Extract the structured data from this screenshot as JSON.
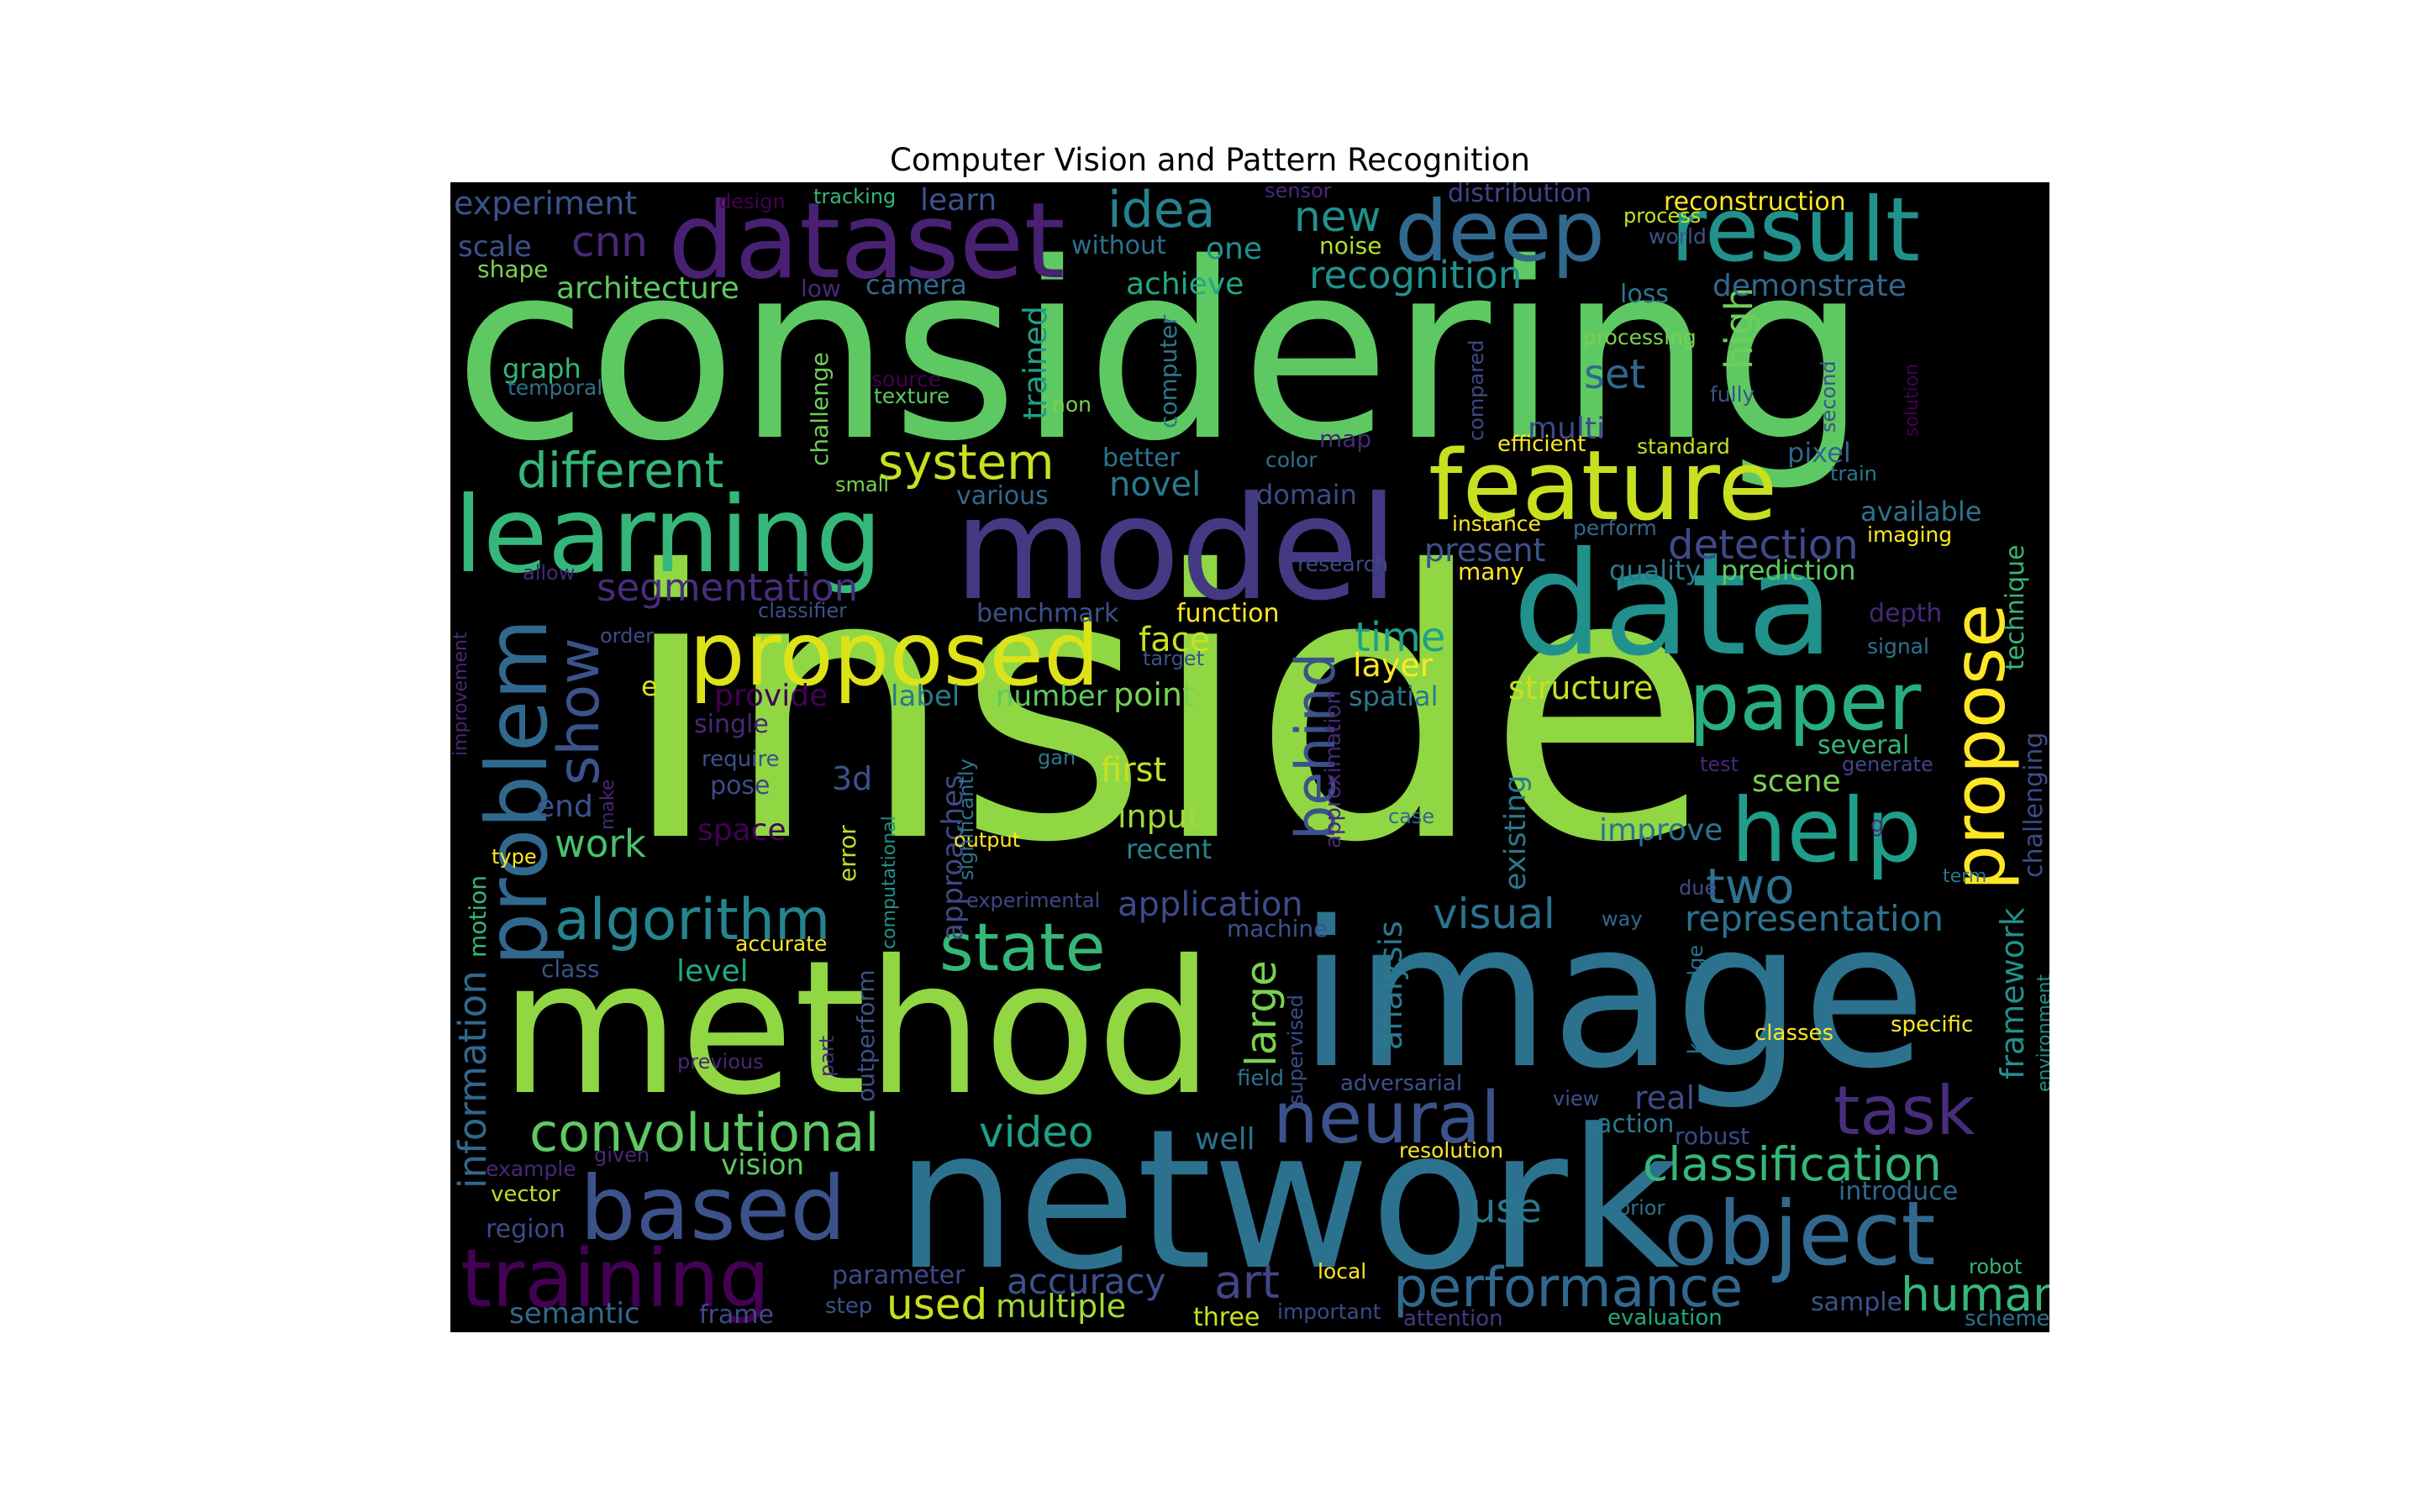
{
  "title": "Computer Vision and Pattern Recognition",
  "background": "#000000",
  "colormap": "viridis",
  "words": [
    {
      "text": "inside",
      "color": "#90d743"
    },
    {
      "text": "considering",
      "color": "#5ec962"
    },
    {
      "text": "network",
      "color": "#2c728e"
    },
    {
      "text": "image",
      "color": "#2c728e"
    },
    {
      "text": "method",
      "color": "#90d743"
    },
    {
      "text": "model",
      "color": "#443983"
    },
    {
      "text": "data",
      "color": "#21918c"
    },
    {
      "text": "dataset",
      "color": "#482173"
    },
    {
      "text": "deep",
      "color": "#31688e"
    },
    {
      "text": "result",
      "color": "#21918c"
    },
    {
      "text": "feature",
      "color": "#c8e020"
    },
    {
      "text": "learning",
      "color": "#35b779"
    },
    {
      "text": "proposed",
      "color": "#dde318"
    },
    {
      "text": "paper",
      "color": "#28ae80"
    },
    {
      "text": "help",
      "color": "#1f9e89"
    },
    {
      "text": "propose",
      "color": "#fde725"
    },
    {
      "text": "problem",
      "color": "#31688e"
    },
    {
      "text": "based",
      "color": "#3b528b"
    },
    {
      "text": "object",
      "color": "#31688e"
    },
    {
      "text": "training",
      "color": "#440154"
    },
    {
      "text": "neural",
      "color": "#3b528b"
    },
    {
      "text": "task",
      "color": "#472d7b"
    },
    {
      "text": "convolutional",
      "color": "#5ec962"
    },
    {
      "text": "state",
      "color": "#35b779"
    },
    {
      "text": "algorithm",
      "color": "#25848e"
    },
    {
      "text": "show",
      "color": "#3b528b"
    },
    {
      "text": "system",
      "color": "#c8e020"
    },
    {
      "text": "different",
      "color": "#35b779"
    },
    {
      "text": "behind",
      "color": "#3b528b"
    },
    {
      "text": "performance",
      "color": "#31688e"
    },
    {
      "text": "classification",
      "color": "#35b779"
    },
    {
      "text": "idea",
      "color": "#26828e"
    },
    {
      "text": "cnn",
      "color": "#482878"
    },
    {
      "text": "new",
      "color": "#21918c"
    },
    {
      "text": "two",
      "color": "#2c728e"
    },
    {
      "text": "video",
      "color": "#1fa188"
    },
    {
      "text": "art",
      "color": "#414487"
    },
    {
      "text": "human",
      "color": "#35b779"
    },
    {
      "text": "detection",
      "color": "#3e4a89"
    },
    {
      "text": "segmentation",
      "color": "#472d7b"
    },
    {
      "text": "representation",
      "color": "#2c728e"
    },
    {
      "text": "visual",
      "color": "#2c728e"
    },
    {
      "text": "recognition",
      "color": "#21918c"
    },
    {
      "text": "time",
      "color": "#1fa188"
    },
    {
      "text": "large",
      "color": "#7ad151"
    },
    {
      "text": "accuracy",
      "color": "#3b528b"
    },
    {
      "text": "application",
      "color": "#3e4a89"
    },
    {
      "text": "framework",
      "color": "#21918c"
    },
    {
      "text": "analysis",
      "color": "#2a788e"
    },
    {
      "text": "used",
      "color": "#c8e020"
    },
    {
      "text": "multiple",
      "color": "#a0da39"
    },
    {
      "text": "set",
      "color": "#31688e"
    },
    {
      "text": "high",
      "color": "#6ece58"
    },
    {
      "text": "novel",
      "color": "#2a788e"
    },
    {
      "text": "trained",
      "color": "#1f9e89"
    },
    {
      "text": "architecture",
      "color": "#5ec962"
    },
    {
      "text": "information",
      "color": "#31688e"
    },
    {
      "text": "work",
      "color": "#4ac16d"
    },
    {
      "text": "use",
      "color": "#2a788e"
    },
    {
      "text": "existing",
      "color": "#2a788e"
    },
    {
      "text": "real",
      "color": "#3e4a89"
    },
    {
      "text": "face",
      "color": "#c8e020"
    },
    {
      "text": "layer",
      "color": "#fde725"
    },
    {
      "text": "structure",
      "color": "#c8e020"
    },
    {
      "text": "spatial",
      "color": "#2a788e"
    },
    {
      "text": "first",
      "color": "#c8e020"
    },
    {
      "text": "input",
      "color": "#a0da39"
    },
    {
      "text": "recent",
      "color": "#26828e"
    },
    {
      "text": "improve",
      "color": "#2c728e"
    },
    {
      "text": "point",
      "color": "#7ad151"
    },
    {
      "text": "number",
      "color": "#5ec962"
    },
    {
      "text": "label",
      "color": "#2a788e"
    },
    {
      "text": "provide",
      "color": "#440154"
    },
    {
      "text": "present",
      "color": "#3b528b"
    },
    {
      "text": "experiment",
      "color": "#3b528b"
    },
    {
      "text": "achieve",
      "color": "#22a884"
    },
    {
      "text": "one",
      "color": "#21918c"
    },
    {
      "text": "scene",
      "color": "#7ad151"
    },
    {
      "text": "level",
      "color": "#22a884"
    },
    {
      "text": "vision",
      "color": "#5ec962"
    },
    {
      "text": "approaches",
      "color": "#3e4a89"
    },
    {
      "text": "end",
      "color": "#3b528b"
    },
    {
      "text": "semantic",
      "color": "#31688e"
    },
    {
      "text": "demonstrate",
      "color": "#31688e"
    },
    {
      "text": "reconstruction",
      "color": "#fde725"
    },
    {
      "text": "multi",
      "color": "#3e4a89"
    },
    {
      "text": "better",
      "color": "#2c728e"
    },
    {
      "text": "function",
      "color": "#fde725"
    },
    {
      "text": "scale",
      "color": "#3b528b"
    },
    {
      "text": "camera",
      "color": "#31688e"
    },
    {
      "text": "3d",
      "color": "#3b528b"
    },
    {
      "text": "space",
      "color": "#440154"
    },
    {
      "text": "well",
      "color": "#2c728e"
    },
    {
      "text": "quality",
      "color": "#2a788e"
    },
    {
      "text": "prediction",
      "color": "#5ec962"
    },
    {
      "text": "motion",
      "color": "#35b779"
    },
    {
      "text": "several",
      "color": "#35b779"
    },
    {
      "text": "benchmark",
      "color": "#3b528b"
    },
    {
      "text": "without",
      "color": "#2c728e"
    },
    {
      "text": "learn",
      "color": "#3b528b"
    },
    {
      "text": "distribution",
      "color": "#414487"
    },
    {
      "text": "graph",
      "color": "#35b779"
    },
    {
      "text": "domain",
      "color": "#3e4a89"
    },
    {
      "text": "region",
      "color": "#3e4a89"
    },
    {
      "text": "three",
      "color": "#c8e020"
    },
    {
      "text": "available",
      "color": "#2c728e"
    },
    {
      "text": "technique",
      "color": "#35b779"
    },
    {
      "text": "depth",
      "color": "#482878"
    },
    {
      "text": "challenging",
      "color": "#3e4a89"
    },
    {
      "text": "loss",
      "color": "#2a788e"
    },
    {
      "text": "pixel",
      "color": "#31688e"
    },
    {
      "text": "sample",
      "color": "#3b528b"
    },
    {
      "text": "various",
      "color": "#31688e"
    },
    {
      "text": "single",
      "color": "#482878"
    },
    {
      "text": "pose",
      "color": "#3e4a89"
    },
    {
      "text": "challenge",
      "color": "#6ece58"
    },
    {
      "text": "computer",
      "color": "#2a788e"
    },
    {
      "text": "error",
      "color": "#bddf26"
    },
    {
      "text": "output",
      "color": "#fde725"
    },
    {
      "text": "machine",
      "color": "#3b528b"
    },
    {
      "text": "introduce",
      "color": "#31688e"
    },
    {
      "text": "frame",
      "color": "#3e4a89"
    },
    {
      "text": "parameter",
      "color": "#3e4a89"
    },
    {
      "text": "shape",
      "color": "#7ad151"
    },
    {
      "text": "noise",
      "color": "#b5de2b"
    },
    {
      "text": "approximation",
      "color": "#482878"
    },
    {
      "text": "adversarial",
      "color": "#3b528b"
    },
    {
      "text": "field",
      "color": "#2c728e"
    },
    {
      "text": "action",
      "color": "#2a788e"
    },
    {
      "text": "resolution",
      "color": "#fde725"
    },
    {
      "text": "local",
      "color": "#fde725"
    },
    {
      "text": "robust",
      "color": "#3e4a89"
    },
    {
      "text": "classes",
      "color": "#fde725"
    },
    {
      "text": "specific",
      "color": "#fde725"
    },
    {
      "text": "knowledge",
      "color": "#2c728e"
    },
    {
      "text": "environment",
      "color": "#21918c"
    },
    {
      "text": "robot",
      "color": "#35b779"
    },
    {
      "text": "scheme",
      "color": "#2c728e"
    },
    {
      "text": "evaluation",
      "color": "#22a884"
    },
    {
      "text": "attention",
      "color": "#443983"
    },
    {
      "text": "important",
      "color": "#3e4a89"
    },
    {
      "text": "step",
      "color": "#3b528b"
    },
    {
      "text": "example",
      "color": "#482878"
    },
    {
      "text": "vector",
      "color": "#bddf26"
    },
    {
      "text": "given",
      "color": "#482878"
    },
    {
      "text": "previous",
      "color": "#482878"
    },
    {
      "text": "class",
      "color": "#3b528b"
    },
    {
      "text": "accurate",
      "color": "#fde725"
    },
    {
      "text": "type",
      "color": "#fde725"
    },
    {
      "text": "significantly",
      "color": "#2c728e"
    },
    {
      "text": "computational",
      "color": "#21918c"
    },
    {
      "text": "outperform",
      "color": "#3b528b"
    },
    {
      "text": "part",
      "color": "#482878"
    },
    {
      "text": "supervised",
      "color": "#3e4a89"
    },
    {
      "text": "experimental",
      "color": "#414487"
    },
    {
      "text": "make",
      "color": "#482878"
    },
    {
      "text": "require",
      "color": "#3b528b"
    },
    {
      "text": "gan",
      "color": "#2a788e"
    },
    {
      "text": "case",
      "color": "#31688e"
    },
    {
      "text": "improvement",
      "color": "#482878"
    },
    {
      "text": "allow",
      "color": "#482878"
    },
    {
      "text": "order",
      "color": "#3e4a89"
    },
    {
      "text": "classifier",
      "color": "#3b528b"
    },
    {
      "text": "target",
      "color": "#3b528b"
    },
    {
      "text": "e",
      "color": "#dde318"
    },
    {
      "text": "research",
      "color": "#3e4a89"
    },
    {
      "text": "many",
      "color": "#fde725"
    },
    {
      "text": "instance",
      "color": "#fde725"
    },
    {
      "text": "perform",
      "color": "#31688e"
    },
    {
      "text": "imaging",
      "color": "#fde725"
    },
    {
      "text": "signal",
      "color": "#2c728e"
    },
    {
      "text": "train",
      "color": "#2a788e"
    },
    {
      "text": "standard",
      "color": "#c8e020"
    },
    {
      "text": "efficient",
      "color": "#fde725"
    },
    {
      "text": "color",
      "color": "#2c728e"
    },
    {
      "text": "map",
      "color": "#482878"
    },
    {
      "text": "small",
      "color": "#7ad151"
    },
    {
      "text": "source",
      "color": "#440154"
    },
    {
      "text": "texture",
      "color": "#5ec962"
    },
    {
      "text": "temporal",
      "color": "#2c728e"
    },
    {
      "text": "non",
      "color": "#7ad151"
    },
    {
      "text": "compared",
      "color": "#3e4a89"
    },
    {
      "text": "processing",
      "color": "#7ad151"
    },
    {
      "text": "fully",
      "color": "#3b528b"
    },
    {
      "text": "second",
      "color": "#3b528b"
    },
    {
      "text": "solution",
      "color": "#440154"
    },
    {
      "text": "process",
      "color": "#c8e020"
    },
    {
      "text": "world",
      "color": "#3b528b"
    },
    {
      "text": "design",
      "color": "#440154"
    },
    {
      "text": "tracking",
      "color": "#35b779"
    },
    {
      "text": "sensor",
      "color": "#482878"
    },
    {
      "text": "low",
      "color": "#482878"
    },
    {
      "text": "test",
      "color": "#482878"
    },
    {
      "text": "generate",
      "color": "#414487"
    },
    {
      "text": "g",
      "color": "#482878"
    },
    {
      "text": "term",
      "color": "#2a788e"
    },
    {
      "text": "due",
      "color": "#3e4a89"
    },
    {
      "text": "way",
      "color": "#31688e"
    },
    {
      "text": "view",
      "color": "#3b528b"
    },
    {
      "text": "prior",
      "color": "#2c728e"
    }
  ]
}
